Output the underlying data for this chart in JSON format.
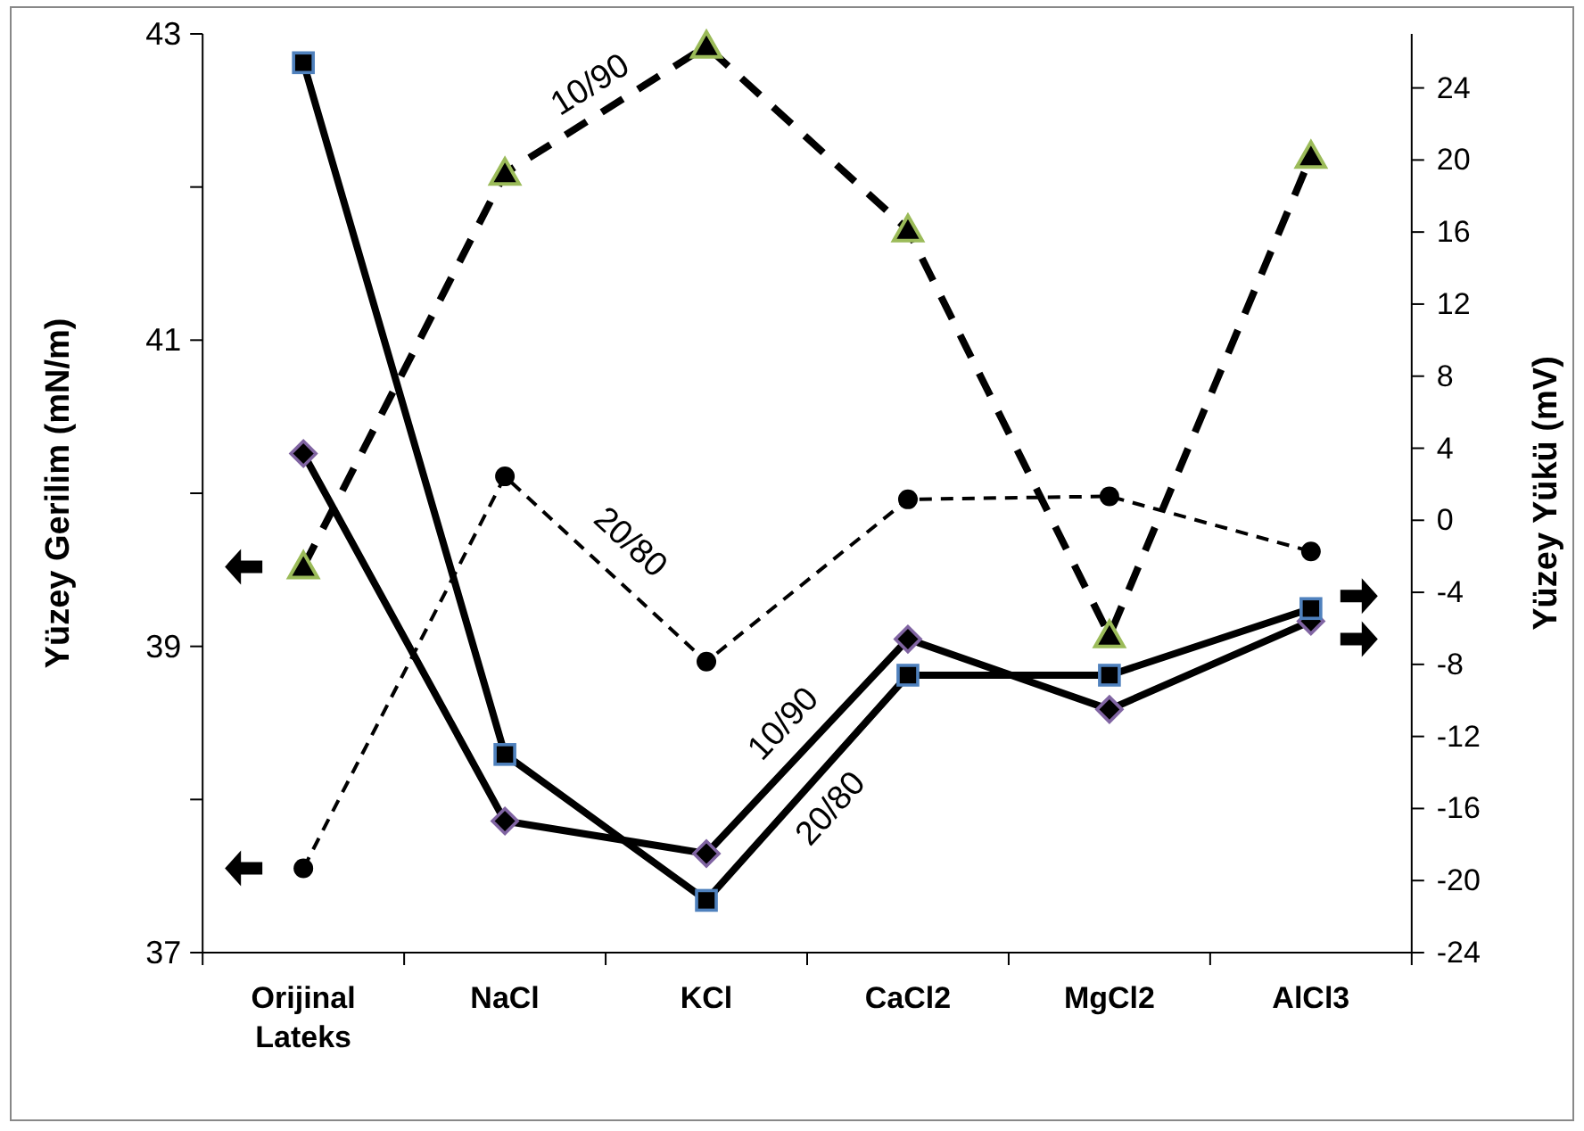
{
  "chart_data": {
    "type": "line",
    "ylabel": "Yüzey Gerilim (mN/m)",
    "y2label": "Yüzey Yükü (mV)",
    "categories": [
      "Orijinal Lateks",
      "NaCl",
      "KCl",
      "CaCl2",
      "MgCl2",
      "AlCl3"
    ],
    "ylim": [
      37,
      43
    ],
    "yticks": [
      37,
      {
        "value": 38,
        "label": null
      },
      39,
      {
        "value": 40,
        "label": null
      },
      41,
      {
        "value": 42,
        "label": null
      },
      43
    ],
    "y2lim": [
      -24,
      27
    ],
    "y2ticks": [
      -24,
      -20,
      -16,
      -12,
      -8,
      -4,
      0,
      4,
      8,
      12,
      16,
      20,
      24
    ],
    "series": [
      {
        "name": "10/90",
        "color": "#000000",
        "marker": "triangle",
        "line_style": "dashed",
        "values": [
          39.52,
          42.09,
          42.92,
          41.72,
          39.07,
          42.2
        ]
      },
      {
        "name": "20/80",
        "color": "#000000",
        "marker": "circle",
        "line_style": "dashed",
        "values": [
          37.55,
          40.11,
          38.9,
          39.96,
          39.98,
          39.62
        ]
      },
      {
        "name": "10/90",
        "color": "#000000",
        "marker": "diamond",
        "line_style": "solid",
        "axis": "y2",
        "values": [
          3.7,
          -16.7,
          -18.5,
          -6.6,
          -10.5,
          -5.6
        ]
      },
      {
        "name": "20/80",
        "color": "#000000",
        "marker": "square",
        "line_style": "solid",
        "axis": "y2",
        "values": [
          25.4,
          -13.0,
          -21.1,
          -8.6,
          -8.6,
          -4.9
        ]
      }
    ]
  }
}
